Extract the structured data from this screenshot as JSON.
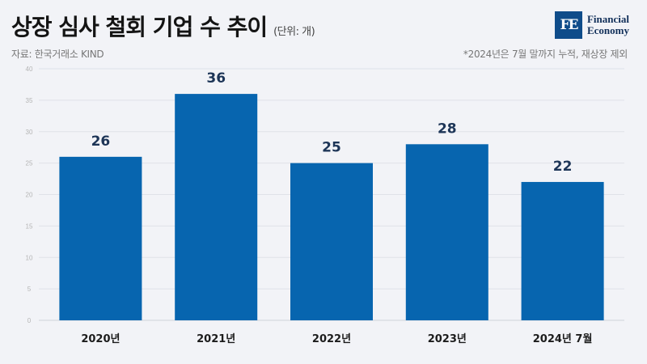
{
  "header": {
    "title": "상장 심사 철회 기업 수 추이",
    "unit": "(단위: 개)",
    "source": "자료: 한국거래소 KIND",
    "note": "*2024년은 7월 말까지 누적, 재상장 제외"
  },
  "logo": {
    "mark": "FE",
    "line1": "Financial",
    "line2": "Economy"
  },
  "colors": {
    "bar": "#0765af",
    "background": "#f2f3f7",
    "logo": "#0f4c8a"
  },
  "chart_data": {
    "type": "bar",
    "title": "상장 심사 철회 기업 수 추이",
    "xlabel": "",
    "ylabel": "",
    "categories": [
      "2020년",
      "2021년",
      "2022년",
      "2023년",
      "2024년 7월"
    ],
    "values": [
      26,
      36,
      25,
      28,
      22
    ],
    "ylim": [
      0,
      40
    ],
    "yticks": [
      0,
      5,
      10,
      15,
      20,
      25,
      30,
      35,
      40
    ],
    "grid": true,
    "legend": "none"
  }
}
